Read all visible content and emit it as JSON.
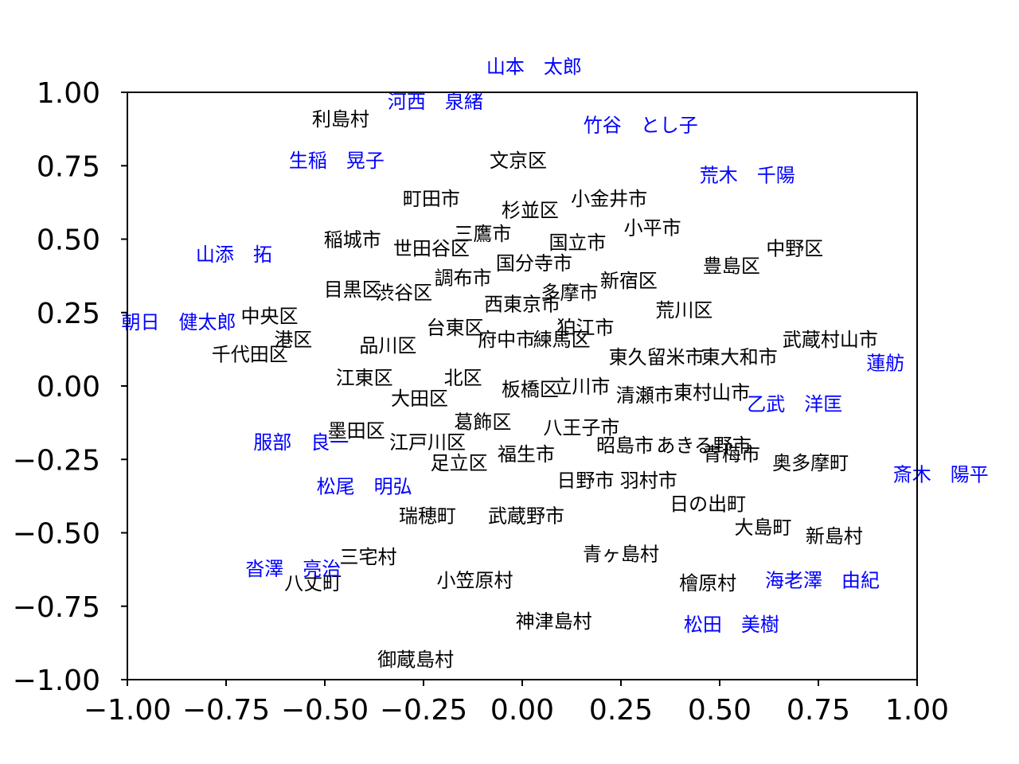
{
  "chart_data": {
    "type": "scatter",
    "xlim": [
      -1.0,
      1.0
    ],
    "ylim": [
      -1.0,
      1.0
    ],
    "xticks": [
      "−1.00",
      "−0.75",
      "−0.50",
      "−0.25",
      "0.00",
      "0.25",
      "0.50",
      "0.75",
      "1.00"
    ],
    "yticks": [
      "1.00",
      "0.75",
      "0.50",
      "0.25",
      "0.00",
      "−0.25",
      "−0.50",
      "−0.75",
      "−1.00"
    ],
    "grid": false,
    "colors": {
      "places": "#000000",
      "people": "#0000ff"
    },
    "series": [
      {
        "color": "#000000",
        "points": [
          {
            "label": "利島村",
            "x": -0.46,
            "y": 0.91
          },
          {
            "label": "文京区",
            "x": -0.01,
            "y": 0.77
          },
          {
            "label": "町田市",
            "x": -0.23,
            "y": 0.64
          },
          {
            "label": "小金井市",
            "x": 0.22,
            "y": 0.64
          },
          {
            "label": "杉並区",
            "x": 0.02,
            "y": 0.6
          },
          {
            "label": "三鷹市",
            "x": -0.1,
            "y": 0.52
          },
          {
            "label": "小平市",
            "x": 0.33,
            "y": 0.54
          },
          {
            "label": "稲城市",
            "x": -0.43,
            "y": 0.5
          },
          {
            "label": "世田谷区",
            "x": -0.23,
            "y": 0.47
          },
          {
            "label": "国立市",
            "x": 0.14,
            "y": 0.49
          },
          {
            "label": "中野区",
            "x": 0.69,
            "y": 0.47
          },
          {
            "label": "豊島区",
            "x": 0.53,
            "y": 0.41
          },
          {
            "label": "国分寺市",
            "x": 0.03,
            "y": 0.42
          },
          {
            "label": "調布市",
            "x": -0.15,
            "y": 0.37
          },
          {
            "label": "新宿区",
            "x": 0.27,
            "y": 0.36
          },
          {
            "label": "目黒区",
            "x": -0.43,
            "y": 0.33
          },
          {
            "label": "渋谷区",
            "x": -0.3,
            "y": 0.32
          },
          {
            "label": "多摩市",
            "x": 0.12,
            "y": 0.32
          },
          {
            "label": "西東京市",
            "x": 0.0,
            "y": 0.28
          },
          {
            "label": "荒川区",
            "x": 0.41,
            "y": 0.26
          },
          {
            "label": "中央区",
            "x": -0.64,
            "y": 0.24
          },
          {
            "label": "台東区",
            "x": -0.17,
            "y": 0.2
          },
          {
            "label": "狛江市",
            "x": 0.16,
            "y": 0.2
          },
          {
            "label": "港区",
            "x": -0.58,
            "y": 0.16
          },
          {
            "label": "府中市",
            "x": -0.04,
            "y": 0.16
          },
          {
            "label": "練馬区",
            "x": 0.1,
            "y": 0.16
          },
          {
            "label": "武蔵村山市",
            "x": 0.78,
            "y": 0.16
          },
          {
            "label": "品川区",
            "x": -0.34,
            "y": 0.14
          },
          {
            "label": "千代田区",
            "x": -0.69,
            "y": 0.11
          },
          {
            "label": "東久留米市",
            "x": 0.34,
            "y": 0.1
          },
          {
            "label": "東大和市",
            "x": 0.55,
            "y": 0.1
          },
          {
            "label": "江東区",
            "x": -0.4,
            "y": 0.03
          },
          {
            "label": "北区",
            "x": -0.15,
            "y": 0.03
          },
          {
            "label": "板橋区",
            "x": 0.02,
            "y": -0.01
          },
          {
            "label": "立川市",
            "x": 0.15,
            "y": 0.0
          },
          {
            "label": "清瀬市",
            "x": 0.31,
            "y": -0.03
          },
          {
            "label": "東村山市",
            "x": 0.48,
            "y": -0.02
          },
          {
            "label": "大田区",
            "x": -0.26,
            "y": -0.04
          },
          {
            "label": "葛飾区",
            "x": -0.1,
            "y": -0.12
          },
          {
            "label": "八王子市",
            "x": 0.15,
            "y": -0.14
          },
          {
            "label": "墨田区",
            "x": -0.42,
            "y": -0.15
          },
          {
            "label": "江戸川区",
            "x": -0.24,
            "y": -0.19
          },
          {
            "label": "昭島市",
            "x": 0.26,
            "y": -0.2
          },
          {
            "label": "あきる野市",
            "x": 0.46,
            "y": -0.2
          },
          {
            "label": "福生市",
            "x": 0.01,
            "y": -0.23
          },
          {
            "label": "青梅市",
            "x": 0.53,
            "y": -0.23
          },
          {
            "label": "奥多摩町",
            "x": 0.73,
            "y": -0.26
          },
          {
            "label": "足立区",
            "x": -0.16,
            "y": -0.26
          },
          {
            "label": "日野市",
            "x": 0.16,
            "y": -0.32
          },
          {
            "label": "羽村市",
            "x": 0.32,
            "y": -0.32
          },
          {
            "label": "日の出町",
            "x": 0.47,
            "y": -0.4
          },
          {
            "label": "瑞穂町",
            "x": -0.24,
            "y": -0.44
          },
          {
            "label": "武蔵野市",
            "x": 0.01,
            "y": -0.44
          },
          {
            "label": "大島町",
            "x": 0.61,
            "y": -0.48
          },
          {
            "label": "新島村",
            "x": 0.79,
            "y": -0.51
          },
          {
            "label": "三宅村",
            "x": -0.39,
            "y": -0.58
          },
          {
            "label": "青ヶ島村",
            "x": 0.25,
            "y": -0.57
          },
          {
            "label": "八丈町",
            "x": -0.53,
            "y": -0.67
          },
          {
            "label": "小笠原村",
            "x": -0.12,
            "y": -0.66
          },
          {
            "label": "檜原村",
            "x": 0.47,
            "y": -0.67
          },
          {
            "label": "神津島村",
            "x": 0.08,
            "y": -0.8
          },
          {
            "label": "御蔵島村",
            "x": -0.27,
            "y": -0.93
          }
        ]
      },
      {
        "color": "#0000ff",
        "points": [
          {
            "label": "山本　太郎",
            "x": 0.03,
            "y": 1.09
          },
          {
            "label": "河西　泉緒",
            "x": -0.22,
            "y": 0.97
          },
          {
            "label": "竹谷　とし子",
            "x": 0.3,
            "y": 0.89
          },
          {
            "label": "生稲　晃子",
            "x": -0.47,
            "y": 0.77
          },
          {
            "label": "荒木　千陽",
            "x": 0.57,
            "y": 0.72
          },
          {
            "label": "山添　拓",
            "x": -0.73,
            "y": 0.45
          },
          {
            "label": "朝日　健太郎",
            "x": -0.87,
            "y": 0.22
          },
          {
            "label": "蓮舫",
            "x": 0.92,
            "y": 0.08
          },
          {
            "label": "乙武　洋匡",
            "x": 0.69,
            "y": -0.06
          },
          {
            "label": "服部　良一",
            "x": -0.56,
            "y": -0.19
          },
          {
            "label": "斎木　陽平",
            "x": 1.06,
            "y": -0.3
          },
          {
            "label": "松尾　明弘",
            "x": -0.4,
            "y": -0.34
          },
          {
            "label": "沓澤　亮治",
            "x": -0.58,
            "y": -0.62
          },
          {
            "label": "海老澤　由紀",
            "x": 0.76,
            "y": -0.66
          },
          {
            "label": "松田　美樹",
            "x": 0.53,
            "y": -0.81
          }
        ]
      }
    ]
  }
}
